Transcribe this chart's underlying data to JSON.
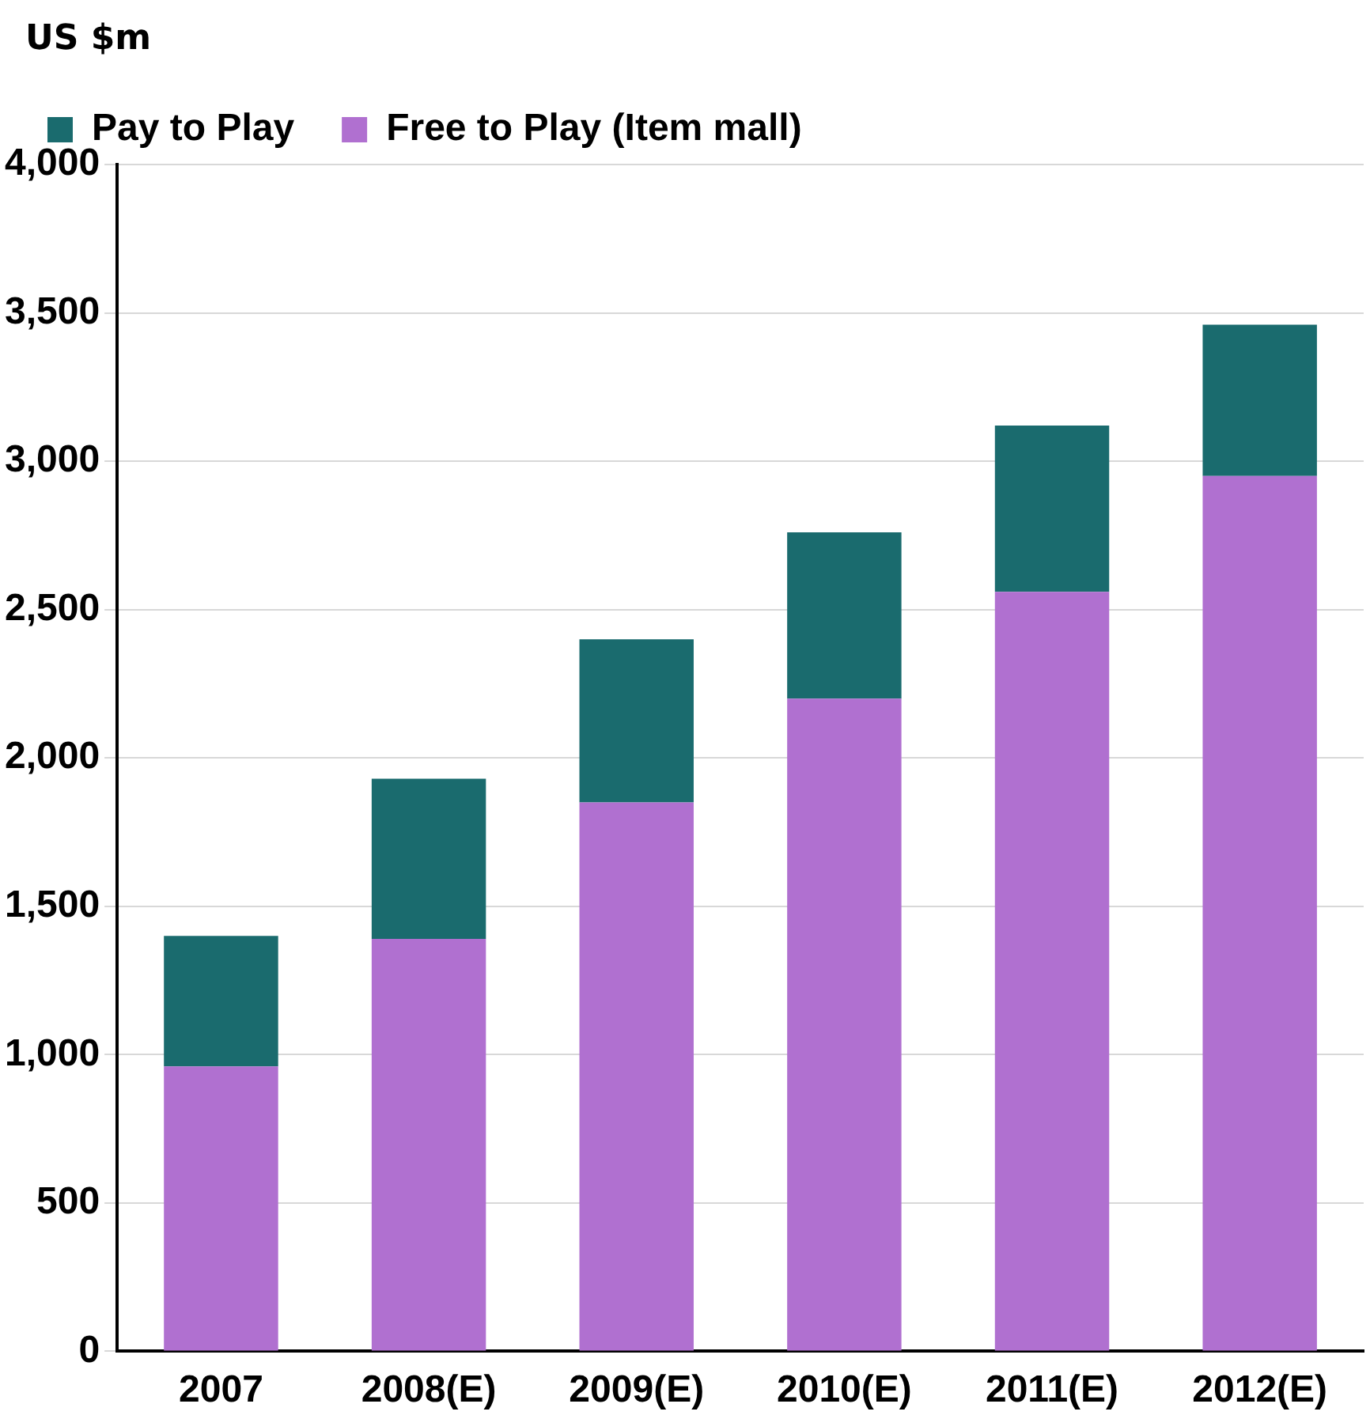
{
  "chart_data": {
    "type": "bar",
    "stacked": true,
    "ylabel": "US $m",
    "categories": [
      "2007",
      "2008(E)",
      "2009(E)",
      "2010(E)",
      "2011(E)",
      "2012(E)"
    ],
    "series": [
      {
        "name": "Free to Play (Item mall)",
        "color": "#b070d0",
        "values": [
          960,
          1390,
          1850,
          2200,
          2560,
          2950
        ]
      },
      {
        "name": "Pay to Play",
        "color": "#1a6b6e",
        "values": [
          440,
          540,
          550,
          560,
          560,
          510
        ]
      }
    ],
    "ylim": [
      0,
      4000
    ],
    "yticks": [
      {
        "value": 0,
        "label": "0"
      },
      {
        "value": 500,
        "label": "500"
      },
      {
        "value": 1000,
        "label": "1,000"
      },
      {
        "value": 1500,
        "label": "1,500"
      },
      {
        "value": 2000,
        "label": "2,000"
      },
      {
        "value": 2500,
        "label": "2,500"
      },
      {
        "value": 3000,
        "label": "3,000"
      },
      {
        "value": 3500,
        "label": "3,500"
      },
      {
        "value": 4000,
        "label": "4,000"
      }
    ],
    "grid": "y",
    "legend": "top"
  }
}
